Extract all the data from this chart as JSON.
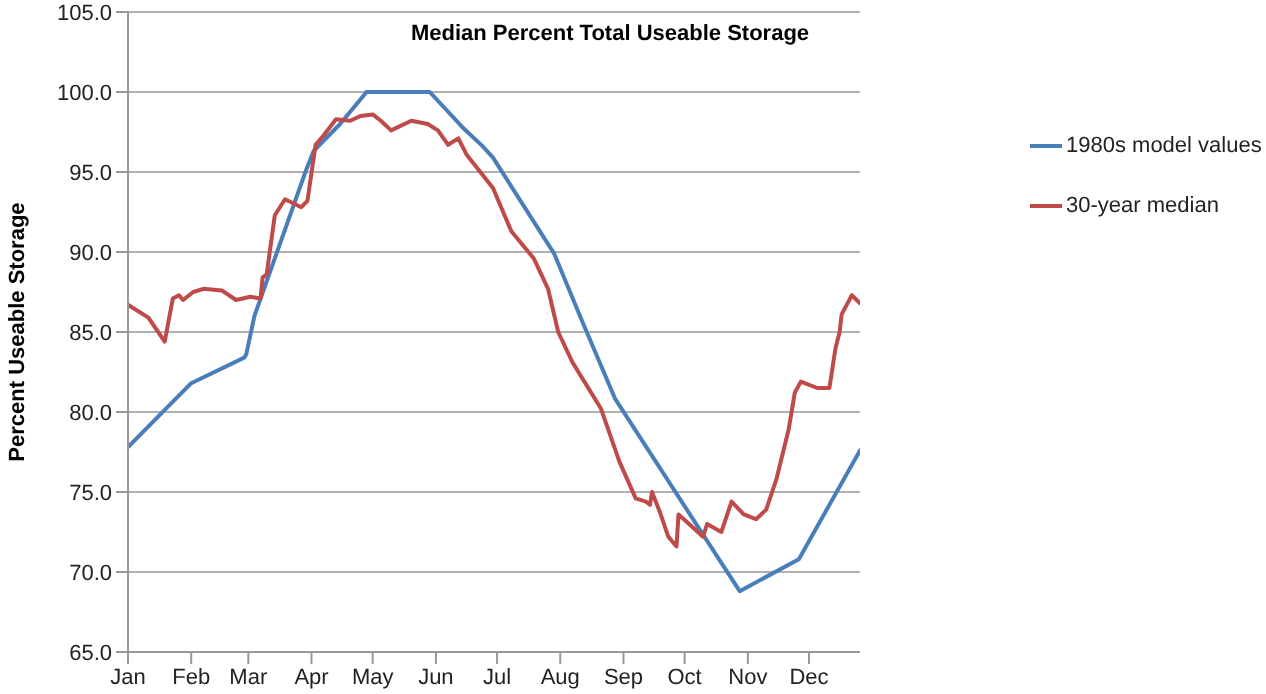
{
  "chart_data": {
    "type": "line",
    "title": "Median Percent Total Useable Storage",
    "ylabel": "Percent Useable Storage",
    "xlim": [
      "--01-01",
      "--12-26"
    ],
    "xticks": [
      {
        "value": "--01-01",
        "label": "Jan"
      },
      {
        "value": "--02-01",
        "label": "Feb"
      },
      {
        "value": "--03-01",
        "label": "Mar"
      },
      {
        "value": "--04-01",
        "label": "Apr"
      },
      {
        "value": "--05-01",
        "label": "May"
      },
      {
        "value": "--06-01",
        "label": "Jun"
      },
      {
        "value": "--07-01",
        "label": "Jul"
      },
      {
        "value": "--08-01",
        "label": "Aug"
      },
      {
        "value": "--09-01",
        "label": "Sep"
      },
      {
        "value": "--10-01",
        "label": "Oct"
      },
      {
        "value": "--11-01",
        "label": "Nov"
      },
      {
        "value": "--12-01",
        "label": "Dec"
      }
    ],
    "ylim": [
      65,
      105
    ],
    "yticks": [
      {
        "value": 65,
        "label": "65.0"
      },
      {
        "value": 70,
        "label": "70.0"
      },
      {
        "value": 75,
        "label": "75.0"
      },
      {
        "value": 80,
        "label": "80.0"
      },
      {
        "value": 85,
        "label": "85.0"
      },
      {
        "value": 90,
        "label": "90.0"
      },
      {
        "value": 95,
        "label": "95.0"
      },
      {
        "value": 100,
        "label": "100.0"
      },
      {
        "value": 105,
        "label": "105.0"
      }
    ],
    "grid": "y",
    "legend": "right",
    "marker": "none",
    "line_style": "solid",
    "series": [
      {
        "name": "1980s model values",
        "color": "#4a7ebb",
        "x": [
          "--01-01",
          "--02-01",
          "--02-27",
          "--02-28",
          "--03-04",
          "--03-29",
          "--04-02",
          "--04-15",
          "--04-28",
          "--05-29",
          "--06-14",
          "--06-24",
          "--06-29",
          "--07-29",
          "--08-12",
          "--08-28",
          "--10-28",
          "--11-26",
          "--12-26"
        ],
        "values": [
          77.8,
          81.8,
          83.4,
          83.6,
          86,
          95,
          96.3,
          98.0,
          100,
          100,
          97.8,
          96.6,
          95.9,
          89.9,
          85.6,
          80.8,
          68.8,
          70.8,
          77.6
        ]
      },
      {
        "name": "30-year median",
        "color": "#be4b48",
        "x": [
          "--01-01",
          "--01-11",
          "--01-19",
          "--01-23",
          "--01-26",
          "--01-28",
          "--02-02",
          "--02-07",
          "--02-16",
          "--02-23",
          "--03-02",
          "--03-07",
          "--03-08",
          "--03-10",
          "--03-14",
          "--03-19",
          "--03-27",
          "--03-30",
          "--04-03",
          "--04-07",
          "--04-13",
          "--04-20",
          "--04-25",
          "--05-01",
          "--05-05",
          "--05-10",
          "--05-20",
          "--05-28",
          "--06-02",
          "--06-07",
          "--06-12",
          "--06-16",
          "--06-29",
          "--07-08",
          "--07-19",
          "--07-26",
          "--07-31",
          "--08-07",
          "--08-21",
          "--08-30",
          "--09-07",
          "--09-12",
          "--09-14",
          "--09-15",
          "--09-19",
          "--09-23",
          "--09-27",
          "--09-28",
          "--10-04",
          "--10-10",
          "--10-12",
          "--10-19",
          "--10-24",
          "--10-30",
          "--11-05",
          "--11-10",
          "--11-15",
          "--11-21",
          "--11-24",
          "--11-27",
          "--12-05",
          "--12-11",
          "--12-14",
          "--12-16",
          "--12-17",
          "--12-22",
          "--12-26"
        ],
        "values": [
          86.7,
          85.9,
          84.4,
          87.1,
          87.3,
          87.0,
          87.5,
          87.7,
          87.6,
          87.0,
          87.2,
          87.1,
          88.4,
          88.6,
          92.3,
          93.3,
          92.8,
          93.2,
          96.7,
          97.3,
          98.3,
          98.2,
          98.5,
          98.6,
          98.2,
          97.6,
          98.2,
          98.0,
          97.6,
          96.7,
          97.1,
          96.1,
          94.0,
          91.3,
          89.6,
          87.7,
          85.0,
          83.1,
          80.2,
          76.9,
          74.6,
          74.4,
          74.2,
          75.0,
          73.7,
          72.2,
          71.6,
          73.6,
          72.9,
          72.2,
          73.0,
          72.5,
          74.4,
          73.6,
          73.3,
          73.9,
          75.8,
          78.9,
          81.2,
          81.9,
          81.5,
          81.5,
          84.0,
          85.0,
          86.1,
          87.3,
          86.8
        ]
      }
    ]
  }
}
